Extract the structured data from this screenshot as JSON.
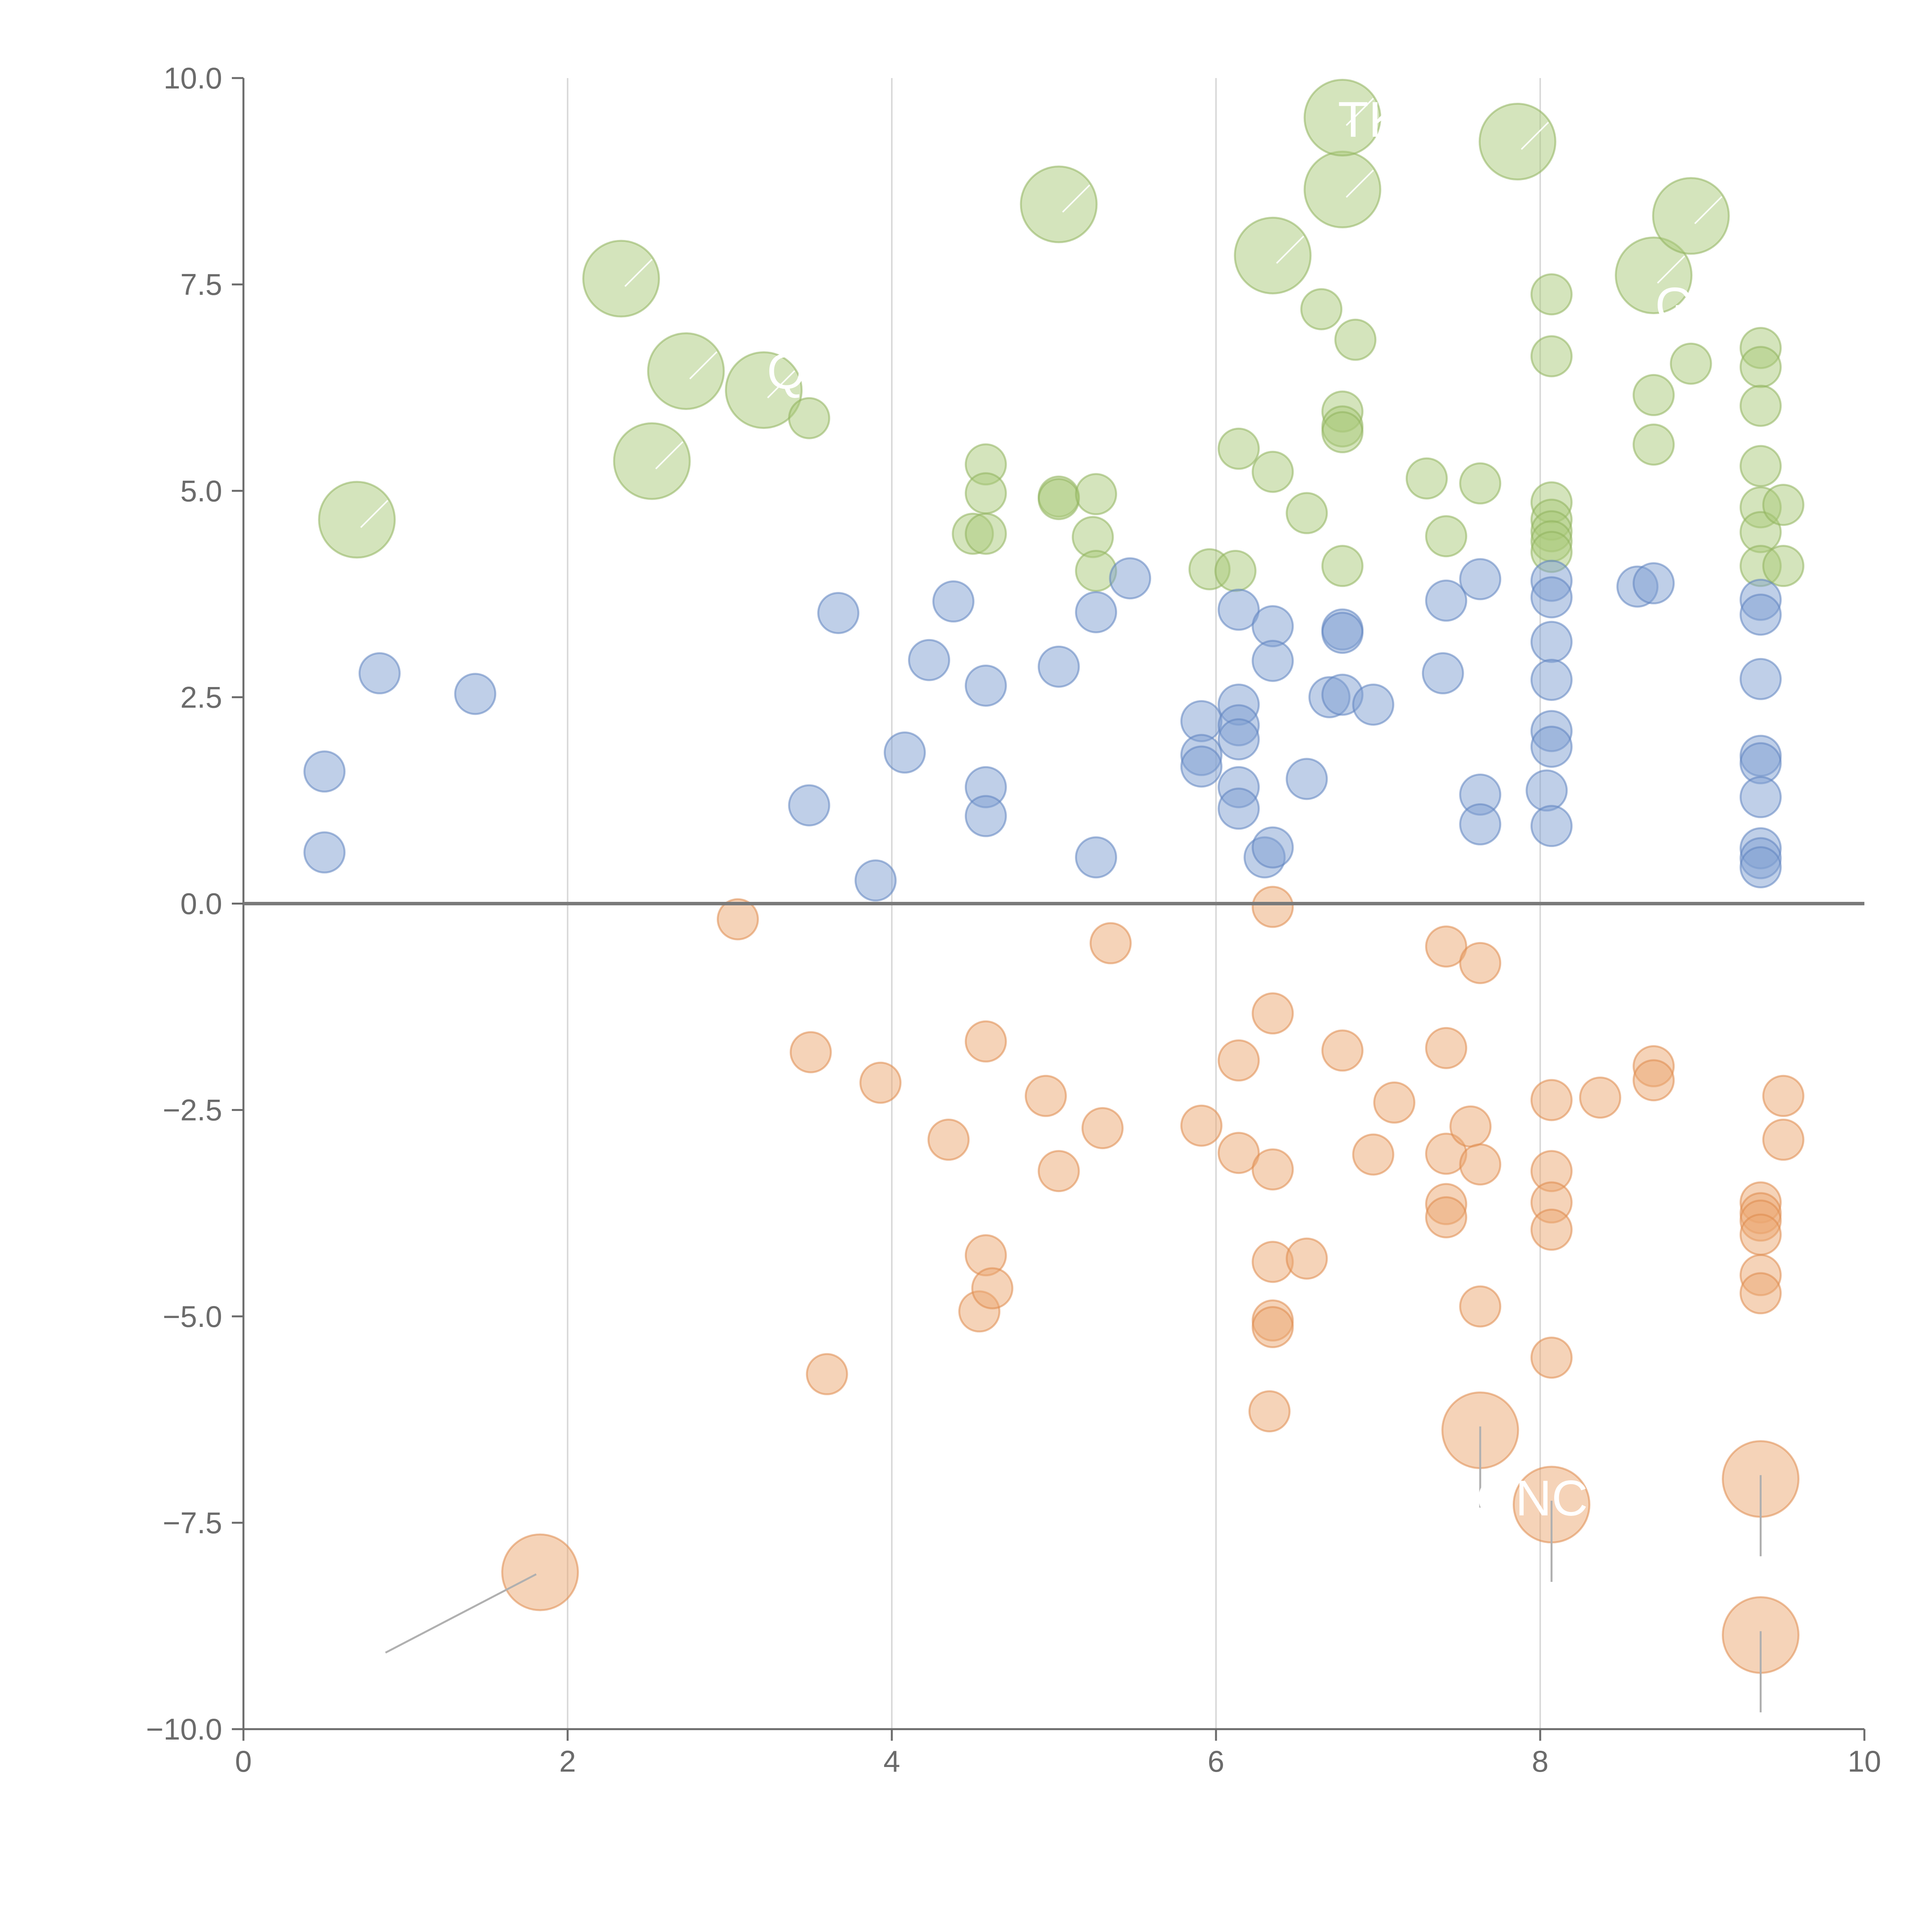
{
  "chart_data": {
    "type": "scatter",
    "title": "",
    "xlabel": "",
    "ylabel": "",
    "xlim": [
      0,
      10
    ],
    "ylim": [
      -10,
      10
    ],
    "x_ticks": [
      0,
      2,
      4,
      6,
      8,
      10
    ],
    "x_tick_labels": [
      "0",
      "2",
      "4",
      "6",
      "8",
      "10"
    ],
    "y_ticks": [
      -10,
      -7.5,
      -5,
      -2.5,
      0,
      2.5,
      5,
      7.5,
      10
    ],
    "y_tick_labels": [
      "−10.0",
      "−7.5",
      "−5.0",
      "−2.5",
      "0.0",
      "2.5",
      "5.0",
      "7.5",
      "10.0"
    ],
    "vertical_grid": true,
    "zero_line": true,
    "series": [
      {
        "name": "positive-high",
        "color": "#a9c97a",
        "stroke": "#8fb35c",
        "points": [
          [
            0.7,
            4.65,
            1
          ],
          [
            2.33,
            7.57,
            1
          ],
          [
            2.52,
            5.36,
            1
          ],
          [
            2.73,
            6.45,
            1
          ],
          [
            3.21,
            6.22,
            1
          ],
          [
            3.49,
            5.88,
            0
          ],
          [
            4.5,
            4.48,
            0
          ],
          [
            4.58,
            5.32,
            0
          ],
          [
            4.58,
            4.97,
            0
          ],
          [
            4.58,
            4.48,
            0
          ],
          [
            5.03,
            4.93,
            0
          ],
          [
            5.03,
            4.9,
            0
          ],
          [
            5.03,
            8.47,
            1
          ],
          [
            5.24,
            4.44,
            0
          ],
          [
            5.26,
            4.03,
            0
          ],
          [
            5.26,
            4.96,
            0
          ],
          [
            5.96,
            4.05,
            0
          ],
          [
            6.12,
            4.03,
            0
          ],
          [
            6.14,
            5.51,
            0
          ],
          [
            6.35,
            5.23,
            0
          ],
          [
            6.35,
            7.85,
            1
          ],
          [
            6.56,
            4.73,
            0
          ],
          [
            6.65,
            7.2,
            0
          ],
          [
            6.78,
            5.96,
            0
          ],
          [
            6.78,
            5.78,
            0
          ],
          [
            6.78,
            5.71,
            0
          ],
          [
            6.78,
            4.09,
            0
          ],
          [
            6.78,
            8.65,
            1
          ],
          [
            6.78,
            9.52,
            1
          ],
          [
            6.86,
            6.83,
            0
          ],
          [
            7.3,
            5.15,
            0
          ],
          [
            7.42,
            4.45,
            0
          ],
          [
            7.63,
            5.09,
            0
          ],
          [
            7.86,
            9.23,
            1
          ],
          [
            8.07,
            7.38,
            0
          ],
          [
            8.07,
            6.63,
            0
          ],
          [
            8.07,
            4.86,
            0
          ],
          [
            8.07,
            4.65,
            0
          ],
          [
            8.07,
            4.51,
            0
          ],
          [
            8.07,
            4.39,
            0
          ],
          [
            8.07,
            4.26,
            0
          ],
          [
            8.7,
            6.16,
            0
          ],
          [
            8.7,
            5.56,
            0
          ],
          [
            8.7,
            7.61,
            1
          ],
          [
            8.93,
            6.54,
            0
          ],
          [
            8.93,
            8.33,
            1
          ],
          [
            9.36,
            6.73,
            0
          ],
          [
            9.36,
            6.5,
            0
          ],
          [
            9.36,
            6.03,
            0
          ],
          [
            9.36,
            5.3,
            0
          ],
          [
            9.36,
            4.8,
            0
          ],
          [
            9.36,
            4.5,
            0
          ],
          [
            9.36,
            4.09,
            0
          ],
          [
            9.5,
            4.83,
            0
          ],
          [
            9.5,
            4.09,
            0
          ]
        ]
      },
      {
        "name": "positive-low",
        "color": "#7f9fd1",
        "stroke": "#5e83c0",
        "points": [
          [
            0.5,
            1.6,
            0
          ],
          [
            0.5,
            0.62,
            0
          ],
          [
            0.84,
            2.79,
            0
          ],
          [
            1.43,
            2.54,
            0
          ],
          [
            3.49,
            1.19,
            0
          ],
          [
            3.67,
            3.52,
            0
          ],
          [
            3.9,
            0.28,
            0
          ],
          [
            4.08,
            1.83,
            0
          ],
          [
            4.23,
            2.95,
            0
          ],
          [
            4.38,
            3.66,
            0
          ],
          [
            4.58,
            2.64,
            0
          ],
          [
            4.58,
            1.41,
            0
          ],
          [
            4.58,
            1.06,
            0
          ],
          [
            5.03,
            2.87,
            0
          ],
          [
            5.26,
            3.53,
            0
          ],
          [
            5.26,
            0.56,
            0
          ],
          [
            5.47,
            3.94,
            0
          ],
          [
            5.91,
            2.21,
            0
          ],
          [
            5.91,
            1.8,
            0
          ],
          [
            5.91,
            1.66,
            0
          ],
          [
            6.14,
            3.56,
            0
          ],
          [
            6.14,
            2.41,
            0
          ],
          [
            6.14,
            2.16,
            0
          ],
          [
            6.14,
            1.99,
            0
          ],
          [
            6.14,
            1.41,
            0
          ],
          [
            6.14,
            1.15,
            0
          ],
          [
            6.3,
            0.56,
            0
          ],
          [
            6.35,
            3.36,
            0
          ],
          [
            6.35,
            2.94,
            0
          ],
          [
            6.35,
            0.68,
            0
          ],
          [
            6.56,
            1.51,
            0
          ],
          [
            6.7,
            2.5,
            0
          ],
          [
            6.78,
            3.32,
            0
          ],
          [
            6.78,
            3.28,
            0
          ],
          [
            6.78,
            2.53,
            0
          ],
          [
            6.97,
            2.41,
            0
          ],
          [
            7.4,
            2.79,
            0
          ],
          [
            7.42,
            3.67,
            0
          ],
          [
            7.63,
            3.93,
            0
          ],
          [
            7.63,
            1.32,
            0
          ],
          [
            7.63,
            0.96,
            0
          ],
          [
            8.04,
            1.37,
            0
          ],
          [
            8.07,
            3.91,
            0
          ],
          [
            8.07,
            3.71,
            0
          ],
          [
            8.07,
            3.17,
            0
          ],
          [
            8.07,
            2.71,
            0
          ],
          [
            8.07,
            2.09,
            0
          ],
          [
            8.07,
            1.9,
            0
          ],
          [
            8.07,
            0.94,
            0
          ],
          [
            8.6,
            3.84,
            0
          ],
          [
            8.7,
            3.88,
            0
          ],
          [
            9.36,
            3.68,
            0
          ],
          [
            9.36,
            3.5,
            0
          ],
          [
            9.36,
            2.72,
            0
          ],
          [
            9.36,
            1.79,
            0
          ],
          [
            9.36,
            1.7,
            0
          ],
          [
            9.36,
            1.29,
            0
          ],
          [
            9.36,
            0.67,
            0
          ],
          [
            9.36,
            0.55,
            0
          ],
          [
            9.36,
            0.44,
            0
          ]
        ]
      },
      {
        "name": "negative",
        "color": "#eca772",
        "stroke": "#df8a4c",
        "points": [
          [
            1.83,
            -8.1,
            1
          ],
          [
            3.05,
            -0.19,
            0
          ],
          [
            3.5,
            -1.8,
            0
          ],
          [
            3.6,
            -5.7,
            0
          ],
          [
            3.93,
            -2.17,
            0
          ],
          [
            4.35,
            -2.86,
            0
          ],
          [
            4.54,
            -4.94,
            0
          ],
          [
            4.58,
            -1.67,
            0
          ],
          [
            4.58,
            -4.26,
            0
          ],
          [
            4.62,
            -4.66,
            0
          ],
          [
            4.95,
            -2.33,
            0
          ],
          [
            5.03,
            -3.24,
            0
          ],
          [
            5.3,
            -2.72,
            0
          ],
          [
            5.35,
            -0.48,
            0
          ],
          [
            5.91,
            -2.69,
            0
          ],
          [
            6.14,
            -3.02,
            0
          ],
          [
            6.14,
            -1.9,
            0
          ],
          [
            6.33,
            -6.15,
            0
          ],
          [
            6.35,
            -0.04,
            0
          ],
          [
            6.35,
            -1.33,
            0
          ],
          [
            6.35,
            -3.22,
            0
          ],
          [
            6.35,
            -4.34,
            0
          ],
          [
            6.35,
            -5.05,
            0
          ],
          [
            6.35,
            -5.13,
            0
          ],
          [
            6.56,
            -4.3,
            0
          ],
          [
            6.78,
            -1.78,
            0
          ],
          [
            6.97,
            -3.04,
            0
          ],
          [
            7.1,
            -2.41,
            0
          ],
          [
            7.42,
            -0.52,
            0
          ],
          [
            7.42,
            -1.75,
            0
          ],
          [
            7.42,
            -3.03,
            0
          ],
          [
            7.42,
            -3.64,
            0
          ],
          [
            7.42,
            -3.8,
            0
          ],
          [
            7.57,
            -2.7,
            0
          ],
          [
            7.63,
            -0.72,
            0
          ],
          [
            7.63,
            -3.16,
            0
          ],
          [
            7.63,
            -4.88,
            0
          ],
          [
            7.63,
            -6.38,
            1
          ],
          [
            8.07,
            -2.38,
            0
          ],
          [
            8.07,
            -3.24,
            0
          ],
          [
            8.07,
            -3.62,
            0
          ],
          [
            8.07,
            -3.95,
            0
          ],
          [
            8.07,
            -5.5,
            0
          ],
          [
            8.07,
            -7.28,
            1
          ],
          [
            8.37,
            -2.35,
            0
          ],
          [
            8.7,
            -1.97,
            0
          ],
          [
            8.7,
            -2.14,
            0
          ],
          [
            9.36,
            -3.62,
            0
          ],
          [
            9.36,
            -3.75,
            0
          ],
          [
            9.36,
            -3.84,
            0
          ],
          [
            9.36,
            -4.01,
            0
          ],
          [
            9.36,
            -4.5,
            0
          ],
          [
            9.36,
            -4.72,
            0
          ],
          [
            9.36,
            -6.97,
            1
          ],
          [
            9.36,
            -8.86,
            1
          ],
          [
            9.5,
            -2.33,
            0
          ],
          [
            9.5,
            -2.86,
            0
          ]
        ]
      }
    ],
    "annotations": [
      "TK",
      "ONC",
      "Q",
      "GO"
    ]
  }
}
